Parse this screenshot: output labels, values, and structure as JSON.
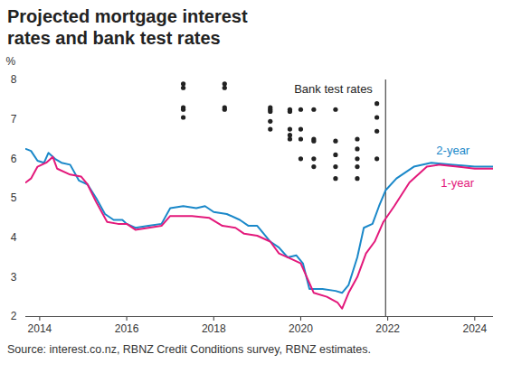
{
  "chart_data": {
    "type": "line",
    "title": "Projected mortgage interest rates and bank test rates",
    "y_label": "%",
    "source": "Source: interest.co.nz, RBNZ Credit Conditions survey, RBNZ estimates.",
    "xlim": [
      2013.68,
      2024.43
    ],
    "xticks": [
      2014,
      2016,
      2018,
      2020,
      2022,
      2024
    ],
    "ylim": [
      2,
      8
    ],
    "yticks": [
      2,
      3,
      4,
      5,
      6,
      7,
      8
    ],
    "grid": false,
    "forecast_start": 2021.95,
    "series": [
      {
        "name": "2-year",
        "type": "line",
        "color": "#1a88c9",
        "x": [
          2013.68,
          2013.8,
          2013.95,
          2014.1,
          2014.2,
          2014.35,
          2014.5,
          2014.7,
          2014.9,
          2015.1,
          2015.3,
          2015.5,
          2015.7,
          2015.9,
          2016.0,
          2016.2,
          2016.5,
          2016.8,
          2017.0,
          2017.3,
          2017.6,
          2017.8,
          2018.0,
          2018.3,
          2018.6,
          2018.8,
          2019.0,
          2019.3,
          2019.5,
          2019.7,
          2019.9,
          2020.05,
          2020.2,
          2020.5,
          2020.8,
          2020.95,
          2021.1,
          2021.3,
          2021.45,
          2021.65,
          2021.8,
          2021.95,
          2022.2,
          2022.6,
          2023.0,
          2023.5,
          2024.0,
          2024.43
        ],
        "values": [
          6.25,
          6.2,
          5.95,
          5.9,
          6.15,
          6.0,
          5.9,
          5.85,
          5.45,
          5.35,
          5.0,
          4.6,
          4.45,
          4.45,
          4.35,
          4.25,
          4.3,
          4.35,
          4.75,
          4.8,
          4.75,
          4.8,
          4.65,
          4.6,
          4.45,
          4.3,
          4.3,
          3.9,
          3.75,
          3.5,
          3.55,
          3.35,
          2.7,
          2.7,
          2.65,
          2.6,
          2.8,
          3.5,
          4.25,
          4.35,
          4.8,
          5.2,
          5.5,
          5.8,
          5.9,
          5.85,
          5.8,
          5.8
        ]
      },
      {
        "name": "1-year",
        "type": "line",
        "color": "#e3197b",
        "x": [
          2013.68,
          2013.8,
          2013.95,
          2014.15,
          2014.3,
          2014.4,
          2014.7,
          2014.95,
          2015.1,
          2015.3,
          2015.55,
          2015.8,
          2016.0,
          2016.2,
          2016.5,
          2016.8,
          2017.0,
          2017.5,
          2017.9,
          2018.2,
          2018.5,
          2018.7,
          2019.0,
          2019.3,
          2019.5,
          2019.8,
          2020.0,
          2020.3,
          2020.6,
          2020.85,
          2020.95,
          2021.1,
          2021.3,
          2021.5,
          2021.7,
          2021.9,
          2022.15,
          2022.5,
          2022.9,
          2023.2,
          2023.6,
          2024.0,
          2024.43
        ],
        "values": [
          5.4,
          5.5,
          5.8,
          5.9,
          6.05,
          5.75,
          5.6,
          5.55,
          5.35,
          4.9,
          4.4,
          4.35,
          4.35,
          4.2,
          4.25,
          4.3,
          4.55,
          4.55,
          4.5,
          4.3,
          4.25,
          4.1,
          4.05,
          3.9,
          3.6,
          3.45,
          3.35,
          2.6,
          2.5,
          2.35,
          2.2,
          2.6,
          3.0,
          3.6,
          3.9,
          4.4,
          4.8,
          5.4,
          5.8,
          5.85,
          5.8,
          5.75,
          5.75
        ]
      },
      {
        "name": "Bank test rates",
        "type": "scatter",
        "color": "#222222",
        "marker": "circle",
        "x": [
          2017.3,
          2017.3,
          2017.3,
          2017.3,
          2017.3,
          2018.25,
          2018.25,
          2018.25,
          2018.25,
          2019.3,
          2019.3,
          2019.3,
          2019.3,
          2019.3,
          2019.75,
          2019.75,
          2019.75,
          2019.75,
          2019.75,
          2020.0,
          2020.0,
          2020.0,
          2020.0,
          2020.3,
          2020.3,
          2020.3,
          2020.3,
          2020.3,
          2020.8,
          2020.8,
          2020.8,
          2020.8,
          2020.8,
          2021.3,
          2021.3,
          2021.3,
          2021.3,
          2021.3,
          2021.75,
          2021.75,
          2021.75,
          2021.75
        ],
        "values": [
          7.9,
          7.8,
          7.3,
          7.25,
          7.05,
          7.9,
          7.8,
          7.3,
          7.25,
          7.3,
          7.25,
          7.2,
          6.95,
          6.75,
          7.25,
          7.2,
          6.75,
          6.6,
          6.5,
          7.25,
          6.75,
          6.5,
          6.0,
          7.25,
          6.5,
          6.45,
          6.0,
          5.8,
          7.25,
          6.45,
          6.1,
          5.8,
          5.5,
          6.5,
          6.25,
          6.0,
          5.8,
          5.5,
          7.4,
          7.05,
          6.7,
          6.0
        ]
      }
    ]
  }
}
